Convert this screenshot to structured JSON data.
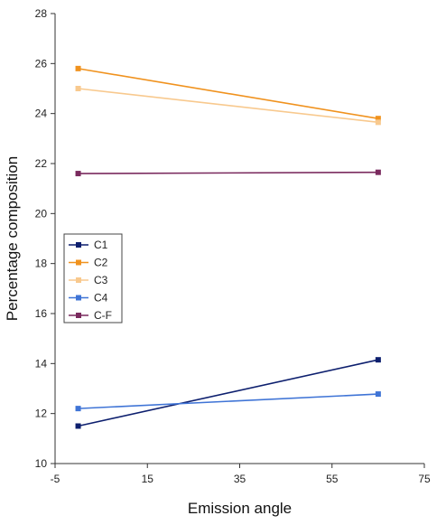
{
  "chart_data": {
    "type": "line",
    "title": "",
    "xlabel": "Emission angle",
    "ylabel": "Percentage composition",
    "xlim": [
      -5,
      75
    ],
    "ylim": [
      10,
      28
    ],
    "x_ticks": [
      -5,
      15,
      35,
      55,
      75
    ],
    "y_ticks": [
      10,
      12,
      14,
      16,
      18,
      20,
      22,
      24,
      26,
      28
    ],
    "x_tick_labels": [
      "-5",
      "15",
      "35",
      "55",
      "75"
    ],
    "y_tick_labels": [
      "10",
      "12",
      "14",
      "16",
      "18",
      "20",
      "22",
      "24",
      "26",
      "28"
    ],
    "grid": false,
    "legend_position": "left",
    "series": [
      {
        "name": "C1",
        "color": "#0d1f6e",
        "x": [
          0,
          65
        ],
        "y": [
          11.5,
          14.15
        ]
      },
      {
        "name": "C2",
        "color": "#f0921e",
        "x": [
          0,
          65
        ],
        "y": [
          25.8,
          23.8
        ]
      },
      {
        "name": "C3",
        "color": "#f8c98e",
        "x": [
          0,
          65
        ],
        "y": [
          25.0,
          23.65
        ]
      },
      {
        "name": "C4",
        "color": "#3f74d6",
        "x": [
          0,
          65
        ],
        "y": [
          12.2,
          12.78
        ]
      },
      {
        "name": "C-F",
        "color": "#7a2a5e",
        "x": [
          0,
          65
        ],
        "y": [
          21.6,
          21.65
        ]
      }
    ]
  }
}
